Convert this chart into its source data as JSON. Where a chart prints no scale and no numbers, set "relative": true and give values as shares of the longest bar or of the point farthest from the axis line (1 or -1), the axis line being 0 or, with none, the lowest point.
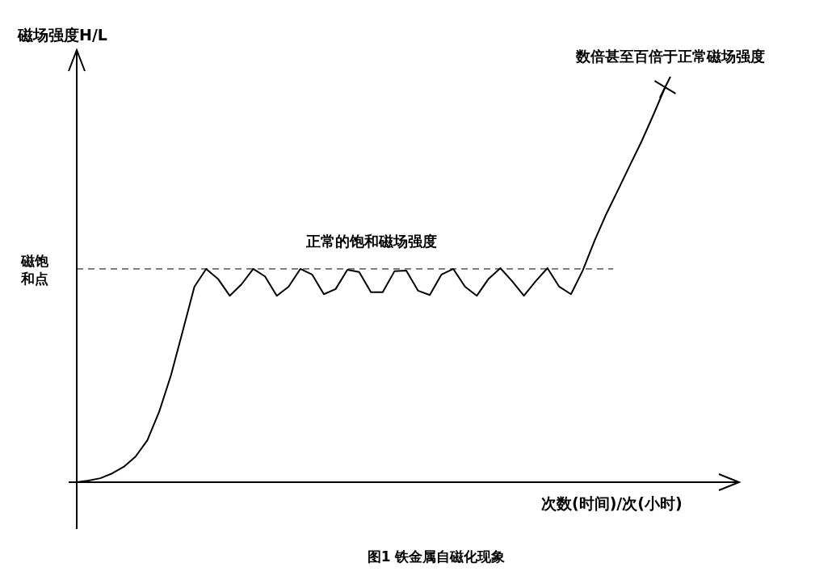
{
  "chart_data": {
    "type": "line",
    "relative": true,
    "title": "图1 铁金属自磁化现象",
    "xlabel": "次数(时间)/次(小时)",
    "ylabel": "磁场强度H/L",
    "annotations": [
      "正常的饱和磁场强度",
      "数倍甚至百倍于正常磁场强度"
    ],
    "categories": [
      null,
      null,
      null,
      null,
      null,
      null,
      null,
      null,
      null,
      null,
      null,
      null,
      null,
      null,
      null,
      null,
      null,
      null,
      null,
      null,
      null,
      null,
      null,
      null,
      null,
      null,
      null,
      null,
      null,
      null,
      null,
      null,
      null,
      null,
      null,
      null,
      null,
      null,
      null,
      null,
      null,
      null,
      null,
      null,
      null,
      null,
      null,
      null,
      null,
      null,
      null
    ],
    "series": [
      {
        "color": "#000000",
        "line_style": "solid",
        "values": [
          0,
          0.004,
          0.01,
          0.022,
          0.039,
          0.065,
          0.106,
          0.178,
          0.27,
          0.382,
          0.495,
          0.54,
          0.515,
          0.472,
          0.501,
          0.54,
          0.521,
          0.472,
          0.495,
          0.54,
          0.526,
          0.476,
          0.489,
          0.538,
          0.532,
          0.481,
          0.481,
          0.534,
          0.536,
          0.485,
          0.474,
          0.526,
          0.54,
          0.495,
          0.472,
          0.515,
          0.542,
          0.509,
          0.472,
          0.509,
          0.542,
          0.495,
          0.476,
          0.536,
          0.611,
          0.679,
          0.74,
          0.802,
          0.863,
          0.93,
          1
        ]
      }
    ],
    "ref_lines": [
      {
        "axis": "y",
        "value": 0.54,
        "label": "磁饱和点",
        "line_style": "dashed"
      }
    ]
  }
}
